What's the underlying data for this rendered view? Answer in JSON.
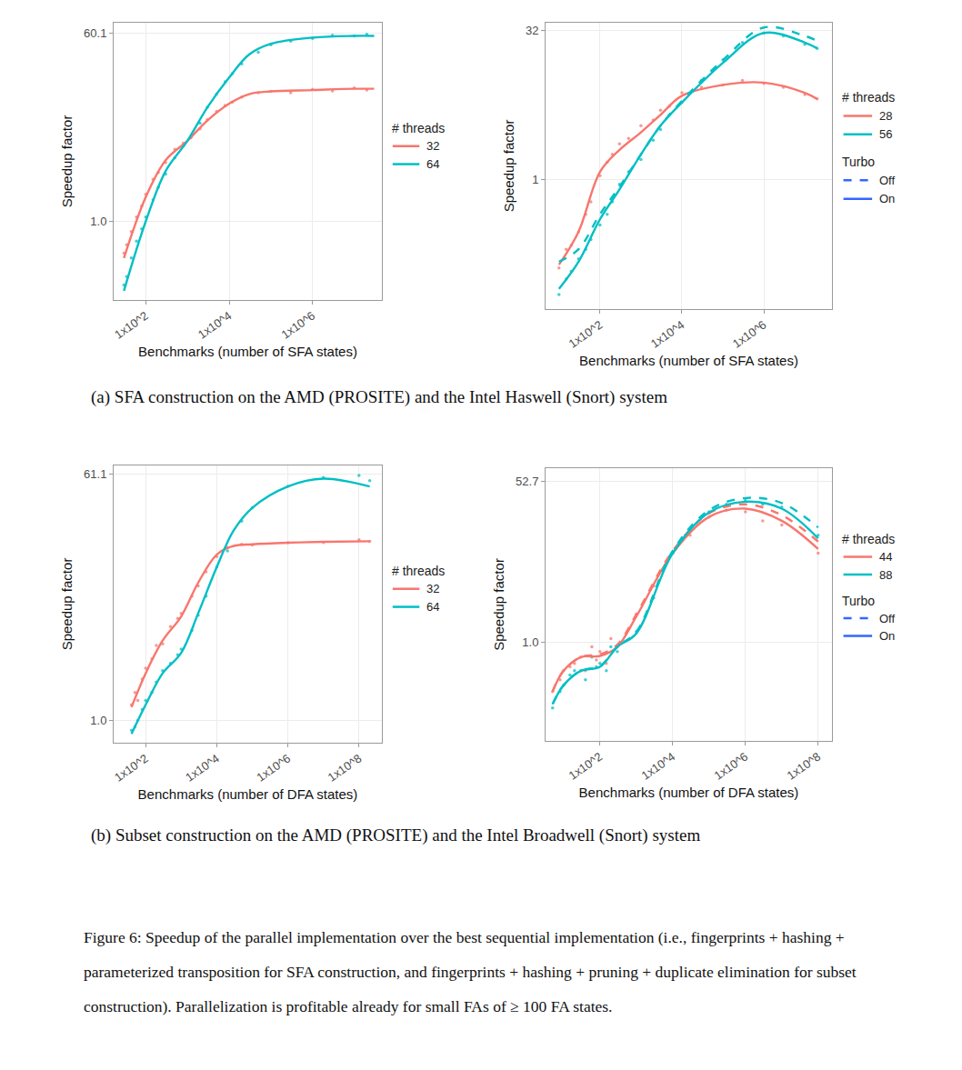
{
  "chart_data": [
    {
      "type": "scatter",
      "x_label": "Benchmarks (number of SFA states)",
      "y_label": "Speedup factor",
      "log": true,
      "grid": true,
      "xlim": [
        17,
        46000000
      ],
      "ylim": [
        0.18,
        76
      ],
      "xticks": [
        {
          "value": 100,
          "label": "1x10^2"
        },
        {
          "value": 10000,
          "label": "1x10^4"
        },
        {
          "value": 1000000,
          "label": "1x10^6"
        }
      ],
      "yticks": [
        {
          "value": 1,
          "label": "1.0"
        },
        60.1
      ],
      "legend_title": "# threads",
      "series": [
        {
          "name": "32",
          "color": "#F8766D",
          "marker": "circle",
          "line_style": "solid",
          "x": [
            30,
            35,
            45,
            60,
            80,
            100,
            150,
            200,
            300,
            500,
            800,
            1200,
            2000,
            3000,
            5000,
            8000,
            12000,
            20000,
            50000,
            100000,
            300000,
            1000000,
            3000000,
            10000000,
            20000000
          ],
          "values": [
            0.5,
            0.6,
            0.8,
            1.1,
            1.4,
            1.8,
            2.5,
            2.9,
            3.6,
            4.8,
            5.5,
            6.2,
            7.5,
            9.2,
            11,
            12.5,
            13.5,
            15,
            16.5,
            17,
            16.5,
            17.8,
            17.2,
            18.3,
            17.5
          ],
          "fit_x": [
            30,
            100,
            300,
            1000,
            3000,
            10000,
            30000,
            100000,
            1000000,
            10000000,
            30000000
          ],
          "fit_values": [
            0.45,
            1.7,
            3.8,
            5.8,
            9,
            13,
            16,
            17,
            17.5,
            18,
            18
          ]
        },
        {
          "name": "64",
          "color": "#00BFC4",
          "marker": "circle",
          "line_style": "solid",
          "x": [
            30,
            35,
            45,
            60,
            80,
            100,
            150,
            200,
            300,
            500,
            800,
            1200,
            2000,
            3000,
            5000,
            8000,
            12000,
            20000,
            50000,
            100000,
            300000,
            1000000,
            3000000,
            10000000,
            20000000
          ],
          "values": [
            0.25,
            0.3,
            0.45,
            0.65,
            0.85,
            1.1,
            1.6,
            2.1,
            2.8,
            4,
            5.2,
            6.3,
            8.5,
            12,
            16,
            21,
            25,
            31,
            40,
            47,
            51,
            54,
            58,
            57,
            59
          ],
          "fit_x": [
            30,
            100,
            300,
            1000,
            3000,
            10000,
            30000,
            100000,
            1000000,
            10000000,
            30000000
          ],
          "fit_values": [
            0.22,
            1,
            3,
            5.8,
            12,
            23,
            38,
            48,
            55,
            57,
            57
          ]
        }
      ]
    },
    {
      "type": "scatter",
      "x_label": "Benchmarks (number of SFA states)",
      "y_label": "Speedup factor",
      "log": true,
      "grid": true,
      "xlim": [
        4.7,
        46000000
      ],
      "ylim": [
        0.05,
        38
      ],
      "xticks": [
        {
          "value": 100,
          "label": "1x10^2"
        },
        {
          "value": 10000,
          "label": "1x10^4"
        },
        {
          "value": 1000000,
          "label": "1x10^6"
        }
      ],
      "yticks": [
        1,
        32
      ],
      "legend_title": "# threads",
      "line_legend": {
        "title": "Turbo",
        "entries": [
          {
            "label": "Off",
            "line_style": "dash",
            "color": "#3366FF"
          },
          {
            "label": "On",
            "line_style": "solid",
            "color": "#3366FF"
          }
        ]
      },
      "series": [
        {
          "name": "28",
          "color": "#F8766D",
          "marker": "circle",
          "line_style": "solid",
          "x": [
            10,
            15,
            20,
            30,
            45,
            60,
            100,
            150,
            200,
            300,
            500,
            1000,
            2000,
            3000,
            5000,
            10000,
            30000,
            100000,
            300000,
            1000000,
            3000000,
            10000000,
            20000000
          ],
          "values": [
            0.13,
            0.2,
            0.22,
            0.3,
            0.45,
            0.6,
            1.1,
            1.5,
            1.8,
            2.3,
            2.6,
            3.5,
            4,
            5,
            5.5,
            7.5,
            8.5,
            9,
            10,
            9.3,
            8.5,
            7.2,
            6.5
          ],
          "fit_x": [
            10,
            30,
            100,
            300,
            1000,
            3000,
            10000,
            100000,
            1000000,
            10000000,
            20000000
          ],
          "fit_values": [
            0.14,
            0.3,
            1.2,
            2,
            3,
            4.5,
            7,
            9,
            9.5,
            7.5,
            6.5
          ]
        },
        {
          "name": "56",
          "color": "#00BFC4",
          "marker": "circle",
          "line_style": "solid",
          "x": [
            10,
            15,
            20,
            30,
            45,
            60,
            100,
            150,
            200,
            300,
            500,
            1000,
            2000,
            3000,
            5000,
            10000,
            30000,
            100000,
            300000,
            1000000,
            3000000,
            10000000,
            20000000
          ],
          "values": [
            0.07,
            0.1,
            0.12,
            0.16,
            0.2,
            0.25,
            0.35,
            0.45,
            0.6,
            0.9,
            1.2,
            1.6,
            2.5,
            3.2,
            4.5,
            6,
            10,
            16,
            24,
            30,
            28,
            23,
            21
          ],
          "fit_x": [
            10,
            30,
            100,
            300,
            1000,
            3000,
            10000,
            100000,
            1000000,
            10000000,
            20000000
          ],
          "fit_values": [
            0.08,
            0.15,
            0.4,
            0.8,
            1.8,
            3.5,
            6,
            15,
            30,
            24,
            21
          ]
        },
        {
          "name": "56",
          "color": "#00BFC4",
          "line_style": "dash",
          "fit_x": [
            10,
            30,
            100,
            300,
            1000,
            3000,
            10000,
            100000,
            1000000,
            10000000,
            20000000
          ],
          "fit_values": [
            0.15,
            0.2,
            0.45,
            0.85,
            1.8,
            3.5,
            6.2,
            16,
            34,
            28,
            25
          ]
        }
      ]
    },
    {
      "type": "scatter",
      "x_label": "Benchmarks (number of DFA states)",
      "y_label": "Speedup factor",
      "log": true,
      "grid": true,
      "xlim": [
        12.6,
        440000000
      ],
      "ylim": [
        0.69,
        71
      ],
      "xticks": [
        {
          "value": 100,
          "label": "1x10^2"
        },
        {
          "value": 10000,
          "label": "1x10^4"
        },
        {
          "value": 1000000,
          "label": "1x10^6"
        },
        {
          "value": 100000000,
          "label": "1x10^8"
        }
      ],
      "yticks": [
        {
          "value": 1,
          "label": "1.0"
        },
        61.1
      ],
      "legend_title": "# threads",
      "series": [
        {
          "name": "32",
          "color": "#F8766D",
          "marker": "circle",
          "line_style": "solid",
          "x": [
            40,
            50,
            60,
            80,
            100,
            150,
            200,
            300,
            500,
            800,
            1000,
            2000,
            3000,
            5000,
            10000,
            20000,
            50000,
            100000,
            1000000,
            10000000,
            100000000,
            200000000
          ],
          "values": [
            1.3,
            1.6,
            1.4,
            2,
            2.4,
            2.8,
            3.5,
            3.6,
            4.8,
            5.5,
            6,
            8,
            9.5,
            12,
            15.5,
            18,
            19,
            18.8,
            19.5,
            19.6,
            20.5,
            20
          ],
          "fit_x": [
            40,
            100,
            300,
            1000,
            3000,
            10000,
            30000,
            100000,
            1000000,
            10000000,
            200000000
          ],
          "fit_values": [
            1.25,
            2.2,
            3.8,
            5.7,
            10,
            16,
            18.5,
            19,
            19.5,
            19.8,
            20
          ]
        },
        {
          "name": "64",
          "color": "#00BFC4",
          "marker": "circle",
          "line_style": "solid",
          "x": [
            40,
            50,
            60,
            80,
            100,
            150,
            200,
            300,
            500,
            800,
            1000,
            2000,
            3000,
            5000,
            10000,
            20000,
            50000,
            100000,
            1000000,
            10000000,
            100000000,
            200000000
          ],
          "values": [
            0.85,
            0.9,
            1,
            1.2,
            1.4,
            1.6,
            1.9,
            2.3,
            2.6,
            3,
            3.3,
            4.5,
            5.8,
            8,
            13,
            17,
            28,
            35,
            50,
            58,
            60,
            55
          ],
          "fit_x": [
            40,
            100,
            300,
            1000,
            3000,
            10000,
            30000,
            100000,
            1000000,
            10000000,
            200000000
          ],
          "fit_values": [
            0.8,
            1.3,
            2.2,
            3.1,
            6,
            13,
            24,
            35,
            50,
            57,
            50
          ]
        }
      ]
    },
    {
      "type": "scatter",
      "x_label": "Benchmarks (number of DFA states)",
      "y_label": "Speedup factor",
      "log": true,
      "grid": true,
      "xlim": [
        3.2,
        240000000
      ],
      "ylim": [
        0.089,
        73
      ],
      "xticks": [
        {
          "value": 100,
          "label": "1x10^2"
        },
        {
          "value": 10000,
          "label": "1x10^4"
        },
        {
          "value": 1000000,
          "label": "1x10^6"
        },
        {
          "value": 100000000,
          "label": "1x10^8"
        }
      ],
      "yticks": [
        {
          "value": 1,
          "label": "1.0"
        },
        52.7
      ],
      "legend_title": "# threads",
      "line_legend": {
        "title": "Turbo",
        "entries": [
          {
            "label": "Off",
            "line_style": "dash",
            "color": "#3366FF"
          },
          {
            "label": "On",
            "line_style": "solid",
            "color": "#3366FF"
          }
        ]
      },
      "series": [
        {
          "name": "44",
          "color": "#F8766D",
          "marker": "circle",
          "line_style": "solid",
          "x": [
            5,
            8,
            10,
            15,
            20,
            30,
            40,
            60,
            80,
            100,
            150,
            200,
            300,
            1000,
            3000,
            10000,
            30000,
            100000,
            300000,
            1000000,
            3000000,
            10000000,
            100000000
          ],
          "values": [
            0.3,
            0.4,
            0.5,
            0.55,
            0.6,
            0.7,
            0.5,
            0.9,
            0.65,
            0.8,
            0.6,
            1.1,
            0.9,
            2,
            4,
            9,
            14,
            22,
            26,
            25,
            20,
            18,
            9
          ],
          "fit_x": [
            5,
            10,
            30,
            100,
            300,
            1000,
            10000,
            100000,
            1000000,
            10000000,
            100000000
          ],
          "fit_values": [
            0.3,
            0.5,
            0.7,
            0.72,
            0.9,
            1.9,
            9,
            22,
            27,
            20,
            10
          ]
        },
        {
          "name": "44",
          "color": "#F8766D",
          "line_style": "dash",
          "fit_x": [
            5,
            10,
            30,
            100,
            300,
            1000,
            10000,
            100000,
            1000000,
            10000000,
            100000000
          ],
          "fit_values": [
            0.3,
            0.5,
            0.7,
            0.75,
            0.95,
            2,
            9.5,
            24,
            30,
            23,
            12
          ]
        },
        {
          "name": "88",
          "color": "#00BFC4",
          "marker": "circle",
          "line_style": "solid",
          "x": [
            5,
            8,
            10,
            15,
            20,
            30,
            40,
            60,
            80,
            100,
            150,
            200,
            300,
            1000,
            3000,
            10000,
            30000,
            100000,
            300000,
            1000000,
            3000000,
            10000000,
            100000000
          ],
          "values": [
            0.2,
            0.3,
            0.35,
            0.45,
            0.5,
            0.5,
            0.4,
            0.7,
            0.55,
            0.6,
            0.5,
            0.9,
            0.8,
            1.3,
            3,
            9,
            16,
            25,
            30,
            33,
            30,
            28,
            14
          ],
          "fit_x": [
            5,
            10,
            30,
            100,
            300,
            1000,
            10000,
            100000,
            1000000,
            10000000,
            100000000
          ],
          "fit_values": [
            0.22,
            0.35,
            0.5,
            0.55,
            0.9,
            1.25,
            9,
            24.5,
            32,
            27,
            13
          ]
        },
        {
          "name": "88",
          "color": "#00BFC4",
          "line_style": "dash",
          "fit_x": [
            5,
            10,
            30,
            100,
            300,
            1000,
            10000,
            100000,
            1000000,
            10000000,
            100000000
          ],
          "fit_values": [
            0.22,
            0.35,
            0.5,
            0.56,
            0.9,
            1.3,
            9.5,
            26,
            35,
            31,
            17
          ]
        }
      ]
    }
  ],
  "subcaptions": [
    "(a) SFA construction on the AMD (PROSITE) and the Intel Haswell (Snort) system",
    "(b) Subset construction on the AMD (PROSITE) and the Intel Broadwell (Snort) system"
  ],
  "caption": "Figure 6: Speedup of the parallel implementation over the best sequential implementation (i.e., fingerprints + hashing + parameterized transposition for SFA construction, and fingerprints + hashing + pruning + duplicate elimination for subset construction). Parallelization is profitable already for small FAs of ≥ 100 FA states."
}
